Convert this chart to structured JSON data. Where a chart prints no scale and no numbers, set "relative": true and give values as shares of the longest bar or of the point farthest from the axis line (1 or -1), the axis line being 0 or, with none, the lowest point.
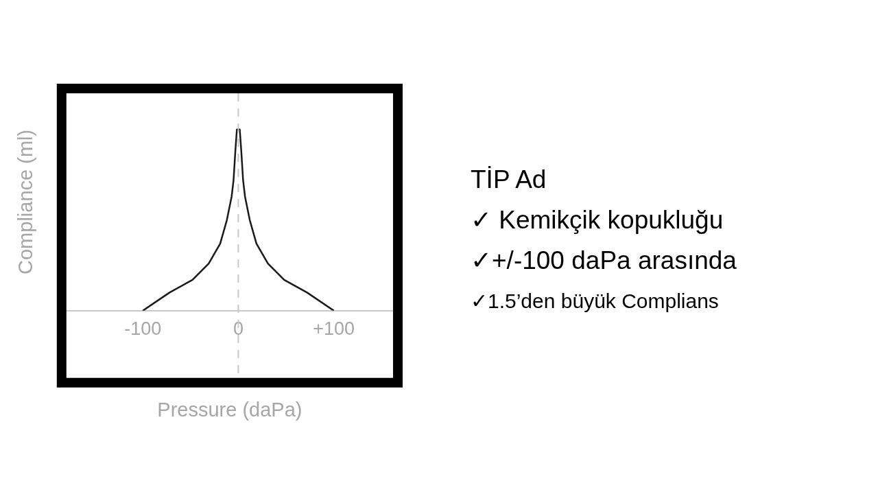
{
  "chart_data": {
    "type": "line",
    "title": "TİP Ad",
    "annotations": [
      "✓ Kemikçik kopukluğu",
      "✓+/-100 daPa arasında",
      "✓1.5’den büyük Complians"
    ],
    "xlabel": "Pressure (daPa)",
    "ylabel": "Compliance (ml)",
    "relative": true,
    "x": [
      -100,
      -72,
      -48,
      -31,
      -19,
      -12,
      -7,
      -5,
      -3,
      -1.5,
      0,
      1.5,
      3,
      5,
      7,
      12,
      19,
      31,
      48,
      72,
      100
    ],
    "series": [
      {
        "color": "#1a1a1a",
        "values": [
          0,
          0.1,
          0.17,
          0.26,
          0.37,
          0.5,
          0.63,
          0.72,
          0.89,
          1,
          1,
          1,
          0.89,
          0.72,
          0.63,
          0.5,
          0.37,
          0.26,
          0.17,
          0.1,
          0
        ]
      }
    ],
    "xlim": [
      -180,
      162
    ],
    "xticks": [
      -100,
      0,
      {
        "value": 100,
        "label": "+100"
      }
    ],
    "ref_lines": [
      {
        "axis": "x",
        "value": 0,
        "color": "#c8c8c8",
        "line_style": "dashed"
      }
    ],
    "marker": "none",
    "line_style": "solid",
    "grid": false,
    "legend": false
  }
}
